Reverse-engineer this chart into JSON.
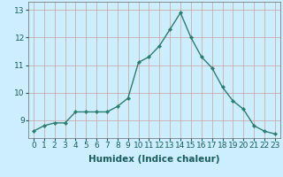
{
  "x": [
    0,
    1,
    2,
    3,
    4,
    5,
    6,
    7,
    8,
    9,
    10,
    11,
    12,
    13,
    14,
    15,
    16,
    17,
    18,
    19,
    20,
    21,
    22,
    23
  ],
  "y": [
    8.6,
    8.8,
    8.9,
    8.9,
    9.3,
    9.3,
    9.3,
    9.3,
    9.5,
    9.8,
    11.1,
    11.3,
    11.7,
    12.3,
    12.9,
    12.0,
    11.3,
    10.9,
    10.2,
    9.7,
    9.4,
    8.8,
    8.6,
    8.5
  ],
  "line_color": "#2d7d6e",
  "marker": "D",
  "marker_size": 2.2,
  "line_width": 1.0,
  "xlabel": "Humidex (Indice chaleur)",
  "xlim": [
    -0.5,
    23.5
  ],
  "ylim": [
    8.35,
    13.3
  ],
  "yticks": [
    9,
    10,
    11,
    12,
    13
  ],
  "xticks": [
    0,
    1,
    2,
    3,
    4,
    5,
    6,
    7,
    8,
    9,
    10,
    11,
    12,
    13,
    14,
    15,
    16,
    17,
    18,
    19,
    20,
    21,
    22,
    23
  ],
  "background_color": "#cceeff",
  "grid_color": "#c8a0a0",
  "xlabel_fontsize": 7.5,
  "tick_fontsize": 6.5
}
